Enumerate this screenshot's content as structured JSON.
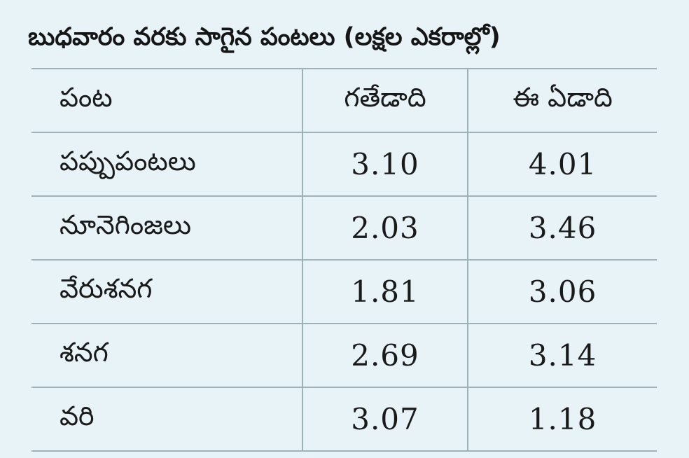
{
  "chart_data": {
    "type": "table",
    "title": "బుధవారం వరకు సాగైన పంటలు (లక్షల ఎకరాల్లో)",
    "columns": [
      "పంట",
      "గతేడాది",
      "ఈ ఏడాది"
    ],
    "rows": [
      {
        "crop": "పప్పుపంటలు",
        "previous_year": "3.10",
        "this_year": "4.01"
      },
      {
        "crop": "నూనెగింజలు",
        "previous_year": "2.03",
        "this_year": "3.46"
      },
      {
        "crop": "వేరుశనగ",
        "previous_year": "1.81",
        "this_year": "3.06"
      },
      {
        "crop": "శనగ",
        "previous_year": "2.69",
        "this_year": "3.14"
      },
      {
        "crop": "వరి",
        "previous_year": "3.07",
        "this_year": "1.18"
      }
    ],
    "colors": {
      "background": "#e8f3f7",
      "rule": "#9fb0b6",
      "text": "#1a1a1a"
    }
  }
}
